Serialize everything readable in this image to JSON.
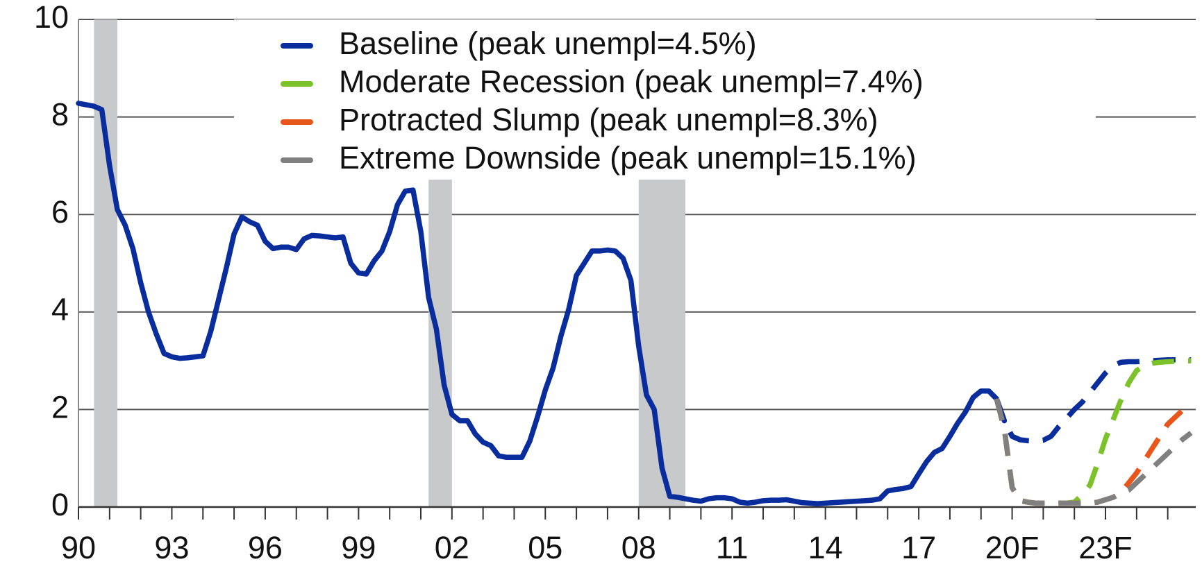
{
  "chart_data": {
    "type": "line",
    "x": [
      1990,
      1990.25,
      1990.5,
      1990.75,
      1991,
      1991.25,
      1991.5,
      1991.75,
      1992,
      1992.25,
      1992.5,
      1992.75,
      1993,
      1993.25,
      1993.5,
      1993.75,
      1994,
      1994.25,
      1994.5,
      1994.75,
      1995,
      1995.25,
      1995.5,
      1995.75,
      1996,
      1996.25,
      1996.5,
      1996.75,
      1997,
      1997.25,
      1997.5,
      1997.75,
      1998,
      1998.25,
      1998.5,
      1998.75,
      1999,
      1999.25,
      1999.5,
      1999.75,
      2000,
      2000.25,
      2000.5,
      2000.75,
      2001,
      2001.25,
      2001.5,
      2001.75,
      2002,
      2002.25,
      2002.5,
      2002.75,
      2003,
      2003.25,
      2003.5,
      2003.75,
      2004,
      2004.25,
      2004.5,
      2004.75,
      2005,
      2005.25,
      2005.5,
      2005.75,
      2006,
      2006.25,
      2006.5,
      2006.75,
      2007,
      2007.25,
      2007.5,
      2007.75,
      2008,
      2008.25,
      2008.5,
      2008.75,
      2009,
      2009.25,
      2009.5,
      2009.75,
      2010,
      2010.25,
      2010.5,
      2010.75,
      2011,
      2011.25,
      2011.5,
      2011.75,
      2012,
      2012.25,
      2012.5,
      2012.75,
      2013,
      2013.25,
      2013.5,
      2013.75,
      2014,
      2014.25,
      2014.5,
      2014.75,
      2015,
      2015.25,
      2015.5,
      2015.75,
      2016,
      2016.25,
      2016.5,
      2016.75,
      2017,
      2017.25,
      2017.5,
      2017.75,
      2018,
      2018.25,
      2018.5,
      2018.75,
      2019,
      2019.25,
      2019.5,
      2019.75,
      2020,
      2020.25,
      2020.5,
      2020.75,
      2021,
      2021.25,
      2021.5,
      2021.75,
      2022,
      2022.25,
      2022.5,
      2022.75,
      2023,
      2023.25,
      2023.5,
      2023.75,
      2024,
      2024.25,
      2024.5,
      2024.75,
      2025,
      2025.25,
      2025.5,
      2025.75
    ],
    "series": [
      {
        "color": "#0a2d9e",
        "style": "solid",
        "values": [
          8.28,
          8.25,
          8.22,
          8.15,
          7.0,
          6.1,
          5.78,
          5.3,
          4.6,
          4.0,
          3.55,
          3.15,
          3.08,
          3.05,
          3.06,
          3.08,
          3.1,
          3.6,
          4.25,
          4.9,
          5.6,
          5.95,
          5.85,
          5.78,
          5.45,
          5.3,
          5.33,
          5.33,
          5.28,
          5.5,
          5.57,
          5.56,
          5.54,
          5.52,
          5.54,
          5.0,
          4.8,
          4.78,
          5.05,
          5.25,
          5.65,
          6.2,
          6.48,
          6.5,
          5.65,
          4.3,
          3.65,
          2.5,
          1.9,
          1.77,
          1.77,
          1.5,
          1.33,
          1.26,
          1.05,
          1.02,
          1.02,
          1.02,
          1.35,
          1.85,
          2.4,
          2.85,
          3.5,
          4.05,
          4.75,
          5.0,
          5.25,
          5.25,
          5.27,
          5.25,
          5.1,
          4.65,
          3.3,
          2.3,
          2.0,
          0.8,
          0.22,
          0.2,
          0.17,
          0.14,
          0.12,
          0.17,
          0.19,
          0.19,
          0.17,
          0.1,
          0.08,
          0.1,
          0.13,
          0.14,
          0.14,
          0.15,
          0.12,
          0.09,
          0.08,
          0.07,
          0.08,
          0.09,
          0.1,
          0.11,
          0.12,
          0.13,
          0.14,
          0.17,
          0.33,
          0.36,
          0.38,
          0.42,
          0.68,
          0.93,
          1.12,
          1.2,
          1.45,
          1.72,
          1.95,
          2.25,
          2.38,
          2.38,
          2.22,
          1.77,
          null,
          null,
          null,
          null,
          null,
          null,
          null,
          null,
          null,
          null,
          null,
          null,
          null,
          null,
          null,
          null,
          null,
          null,
          null,
          null,
          null,
          null,
          null,
          null
        ]
      },
      {
        "name": "Baseline (peak unempl=4.5%)",
        "color": "#0a2d9e",
        "style": "dashed",
        "values": [
          null,
          null,
          null,
          null,
          null,
          null,
          null,
          null,
          null,
          null,
          null,
          null,
          null,
          null,
          null,
          null,
          null,
          null,
          null,
          null,
          null,
          null,
          null,
          null,
          null,
          null,
          null,
          null,
          null,
          null,
          null,
          null,
          null,
          null,
          null,
          null,
          null,
          null,
          null,
          null,
          null,
          null,
          null,
          null,
          null,
          null,
          null,
          null,
          null,
          null,
          null,
          null,
          null,
          null,
          null,
          null,
          null,
          null,
          null,
          null,
          null,
          null,
          null,
          null,
          null,
          null,
          null,
          null,
          null,
          null,
          null,
          null,
          null,
          null,
          null,
          null,
          null,
          null,
          null,
          null,
          null,
          null,
          null,
          null,
          null,
          null,
          null,
          null,
          null,
          null,
          null,
          null,
          null,
          null,
          null,
          null,
          null,
          null,
          null,
          null,
          null,
          null,
          null,
          null,
          null,
          null,
          null,
          null,
          null,
          null,
          null,
          null,
          null,
          null,
          null,
          null,
          null,
          null,
          2.22,
          1.77,
          1.45,
          1.38,
          1.36,
          1.35,
          1.37,
          1.45,
          1.65,
          1.82,
          2.0,
          2.15,
          2.35,
          2.55,
          2.75,
          2.9,
          2.97,
          2.98,
          2.98,
          2.99,
          3.0,
          3.01,
          3.02,
          3.02,
          3.02,
          3.02
        ]
      },
      {
        "name": "Moderate Recession (peak unempl=7.4%)",
        "color": "#7cc22b",
        "style": "dashed",
        "values": [
          null,
          null,
          null,
          null,
          null,
          null,
          null,
          null,
          null,
          null,
          null,
          null,
          null,
          null,
          null,
          null,
          null,
          null,
          null,
          null,
          null,
          null,
          null,
          null,
          null,
          null,
          null,
          null,
          null,
          null,
          null,
          null,
          null,
          null,
          null,
          null,
          null,
          null,
          null,
          null,
          null,
          null,
          null,
          null,
          null,
          null,
          null,
          null,
          null,
          null,
          null,
          null,
          null,
          null,
          null,
          null,
          null,
          null,
          null,
          null,
          null,
          null,
          null,
          null,
          null,
          null,
          null,
          null,
          null,
          null,
          null,
          null,
          null,
          null,
          null,
          null,
          null,
          null,
          null,
          null,
          null,
          null,
          null,
          null,
          null,
          null,
          null,
          null,
          null,
          null,
          null,
          null,
          null,
          null,
          null,
          null,
          null,
          null,
          null,
          null,
          null,
          null,
          null,
          null,
          null,
          null,
          null,
          null,
          null,
          null,
          null,
          null,
          null,
          null,
          null,
          null,
          null,
          null,
          2.22,
          1.6,
          0.4,
          0.13,
          0.1,
          0.08,
          0.08,
          0.08,
          0.08,
          0.08,
          0.1,
          0.25,
          0.45,
          0.9,
          1.4,
          1.8,
          2.2,
          2.55,
          2.8,
          2.9,
          2.95,
          2.97,
          2.98,
          2.99,
          3.0,
          3.0
        ]
      },
      {
        "name": "Protracted Slump (peak unempl=8.3%)",
        "color": "#e8561b",
        "style": "dashed",
        "values": [
          null,
          null,
          null,
          null,
          null,
          null,
          null,
          null,
          null,
          null,
          null,
          null,
          null,
          null,
          null,
          null,
          null,
          null,
          null,
          null,
          null,
          null,
          null,
          null,
          null,
          null,
          null,
          null,
          null,
          null,
          null,
          null,
          null,
          null,
          null,
          null,
          null,
          null,
          null,
          null,
          null,
          null,
          null,
          null,
          null,
          null,
          null,
          null,
          null,
          null,
          null,
          null,
          null,
          null,
          null,
          null,
          null,
          null,
          null,
          null,
          null,
          null,
          null,
          null,
          null,
          null,
          null,
          null,
          null,
          null,
          null,
          null,
          null,
          null,
          null,
          null,
          null,
          null,
          null,
          null,
          null,
          null,
          null,
          null,
          null,
          null,
          null,
          null,
          null,
          null,
          null,
          null,
          null,
          null,
          null,
          null,
          null,
          null,
          null,
          null,
          null,
          null,
          null,
          null,
          null,
          null,
          null,
          null,
          null,
          null,
          null,
          null,
          null,
          null,
          null,
          null,
          null,
          null,
          2.22,
          1.6,
          0.4,
          0.13,
          0.1,
          0.08,
          0.08,
          0.08,
          0.08,
          0.08,
          0.08,
          0.08,
          0.08,
          0.1,
          0.15,
          0.2,
          0.3,
          0.5,
          0.7,
          0.95,
          1.2,
          1.45,
          1.7,
          1.85,
          2.0,
          2.12
        ]
      },
      {
        "name": "Extreme Downside (peak unempl=15.1%)",
        "color": "#808080",
        "style": "dashed",
        "values": [
          null,
          null,
          null,
          null,
          null,
          null,
          null,
          null,
          null,
          null,
          null,
          null,
          null,
          null,
          null,
          null,
          null,
          null,
          null,
          null,
          null,
          null,
          null,
          null,
          null,
          null,
          null,
          null,
          null,
          null,
          null,
          null,
          null,
          null,
          null,
          null,
          null,
          null,
          null,
          null,
          null,
          null,
          null,
          null,
          null,
          null,
          null,
          null,
          null,
          null,
          null,
          null,
          null,
          null,
          null,
          null,
          null,
          null,
          null,
          null,
          null,
          null,
          null,
          null,
          null,
          null,
          null,
          null,
          null,
          null,
          null,
          null,
          null,
          null,
          null,
          null,
          null,
          null,
          null,
          null,
          null,
          null,
          null,
          null,
          null,
          null,
          null,
          null,
          null,
          null,
          null,
          null,
          null,
          null,
          null,
          null,
          null,
          null,
          null,
          null,
          null,
          null,
          null,
          null,
          null,
          null,
          null,
          null,
          null,
          null,
          null,
          null,
          null,
          null,
          null,
          null,
          null,
          null,
          2.22,
          1.6,
          0.4,
          0.13,
          0.1,
          0.08,
          0.08,
          0.08,
          0.08,
          0.08,
          0.08,
          0.08,
          0.08,
          0.1,
          0.15,
          0.2,
          0.28,
          0.35,
          0.5,
          0.65,
          0.8,
          0.95,
          1.1,
          1.25,
          1.4,
          1.52
        ]
      }
    ],
    "shaded_periods": [
      [
        1990.5,
        1991.25
      ],
      [
        2001.25,
        2002
      ],
      [
        2008,
        2009.5
      ]
    ],
    "shade_color": "#c8c9cb",
    "xlim": [
      1990,
      2025.9
    ],
    "xticks": [
      {
        "value": 1990,
        "label": "90"
      },
      {
        "value": 1993,
        "label": "93"
      },
      {
        "value": 1996,
        "label": "96"
      },
      {
        "value": 1999,
        "label": "99"
      },
      {
        "value": 2002,
        "label": "02"
      },
      {
        "value": 2005,
        "label": "05"
      },
      {
        "value": 2008,
        "label": "08"
      },
      {
        "value": 2011,
        "label": "11"
      },
      {
        "value": 2014,
        "label": "14"
      },
      {
        "value": 2017,
        "label": "17"
      },
      {
        "value": 2020,
        "label": "20F"
      },
      {
        "value": 2023,
        "label": "23F"
      }
    ],
    "xminorticks": [
      1990,
      1991,
      1992,
      1993,
      1994,
      1995,
      1996,
      1997,
      1998,
      1999,
      2000,
      2001,
      2002,
      2003,
      2004,
      2005,
      2006,
      2007,
      2008,
      2009,
      2010,
      2011,
      2012,
      2013,
      2014,
      2015,
      2016,
      2017,
      2018,
      2019,
      2020,
      2021,
      2022,
      2023,
      2024,
      2025
    ],
    "ylim": [
      0,
      10
    ],
    "yticks": [
      0,
      2,
      4,
      6,
      8,
      10
    ],
    "grid": true,
    "legend_position": "upper center"
  }
}
